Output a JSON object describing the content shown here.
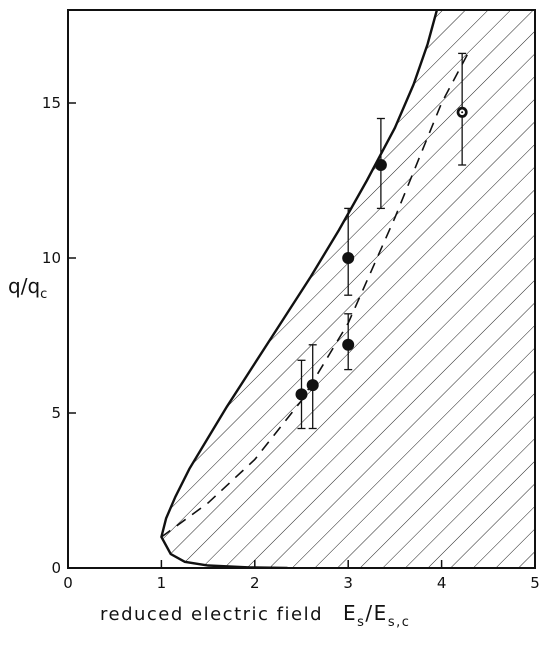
{
  "chart_data": {
    "type": "scatter",
    "title": "",
    "xlabel": "reduced electric field",
    "xlabel_symbol": {
      "base": "E",
      "sub": "s",
      "divider": "/",
      "base2": "E",
      "sub2": "s,c"
    },
    "ylabel_symbol": {
      "base": "q",
      "divider": "/",
      "base2": "q",
      "sub2": "c"
    },
    "xlim": [
      0,
      5
    ],
    "ylim": [
      0,
      18
    ],
    "x_ticks": [
      0,
      1,
      2,
      3,
      4,
      5
    ],
    "x_tick_labels": [
      "0",
      "1",
      "2",
      "3",
      "4",
      "5"
    ],
    "y_ticks": [
      0,
      5,
      10,
      15
    ],
    "y_tick_labels": [
      "0",
      "5",
      "10",
      "15"
    ],
    "grid": false,
    "legend": "none",
    "shaded_region": {
      "description": "hatched region right of boundary curve",
      "hatch": "diagonal"
    },
    "boundary_curve": {
      "style": "solid",
      "x": [
        2.35,
        1.95,
        1.5,
        1.25,
        1.1,
        1.0,
        1.05,
        1.15,
        1.3,
        1.5,
        1.7,
        2.0,
        2.3,
        2.6,
        2.9,
        3.2,
        3.5,
        3.7,
        3.85,
        3.95
      ],
      "y": [
        0.0,
        0.02,
        0.08,
        0.2,
        0.45,
        1.0,
        1.6,
        2.3,
        3.2,
        4.2,
        5.2,
        6.6,
        8.0,
        9.4,
        10.9,
        12.5,
        14.2,
        15.6,
        16.9,
        18.0
      ]
    },
    "dashed_curve": {
      "style": "dashed",
      "x": [
        1.0,
        1.5,
        2.0,
        2.5,
        3.0,
        3.5,
        4.0,
        4.3
      ],
      "y": [
        1.0,
        2.1,
        3.5,
        5.4,
        7.9,
        11.3,
        15.0,
        16.7
      ]
    },
    "points": [
      {
        "x": 2.5,
        "y": 5.6,
        "err_low": 4.5,
        "err_high": 6.7,
        "marker": "filled"
      },
      {
        "x": 2.62,
        "y": 5.9,
        "err_low": 4.5,
        "err_high": 7.2,
        "marker": "filled"
      },
      {
        "x": 3.0,
        "y": 10.0,
        "err_low": 8.8,
        "err_high": 11.6,
        "marker": "filled"
      },
      {
        "x": 3.0,
        "y": 7.2,
        "err_low": 6.4,
        "err_high": 8.2,
        "marker": "filled"
      },
      {
        "x": 3.35,
        "y": 13.0,
        "err_low": 11.6,
        "err_high": 14.5,
        "marker": "filled"
      },
      {
        "x": 4.22,
        "y": 14.7,
        "err_low": 13.0,
        "err_high": 16.6,
        "marker": "open-dot"
      }
    ]
  }
}
